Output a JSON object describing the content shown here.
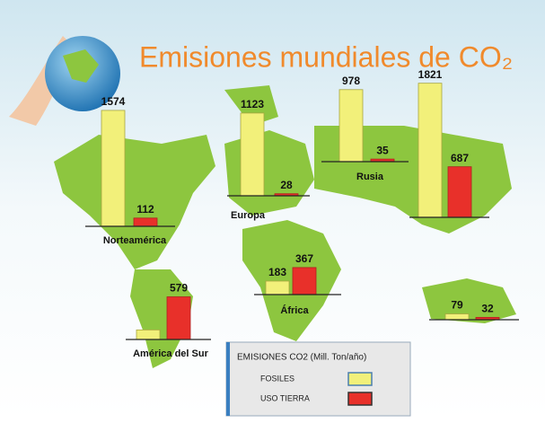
{
  "chart_data": {
    "type": "bar",
    "title": "Emisiones mundiales de CO₂",
    "categories": [
      "Norteamérica",
      "Europa",
      "Rusia",
      null,
      "América del Sur",
      "África",
      null
    ],
    "series": [
      {
        "name": "FOSILES",
        "color": "#f2f07a",
        "values": [
          1574,
          1123,
          978,
          1821,
          130,
          183,
          79
        ],
        "value_labels": [
          "1574",
          "1123",
          "978",
          "1821",
          null,
          "183",
          "79"
        ]
      },
      {
        "name": "USO TIERRA",
        "color": "#e8302a",
        "values": [
          112,
          28,
          35,
          687,
          579,
          367,
          32
        ],
        "value_labels": [
          "112",
          "28",
          "35",
          "687",
          "579",
          "367",
          "32"
        ]
      }
    ],
    "legend_title": "EMISIONES  CO2 (Mill. Ton/año)"
  }
}
